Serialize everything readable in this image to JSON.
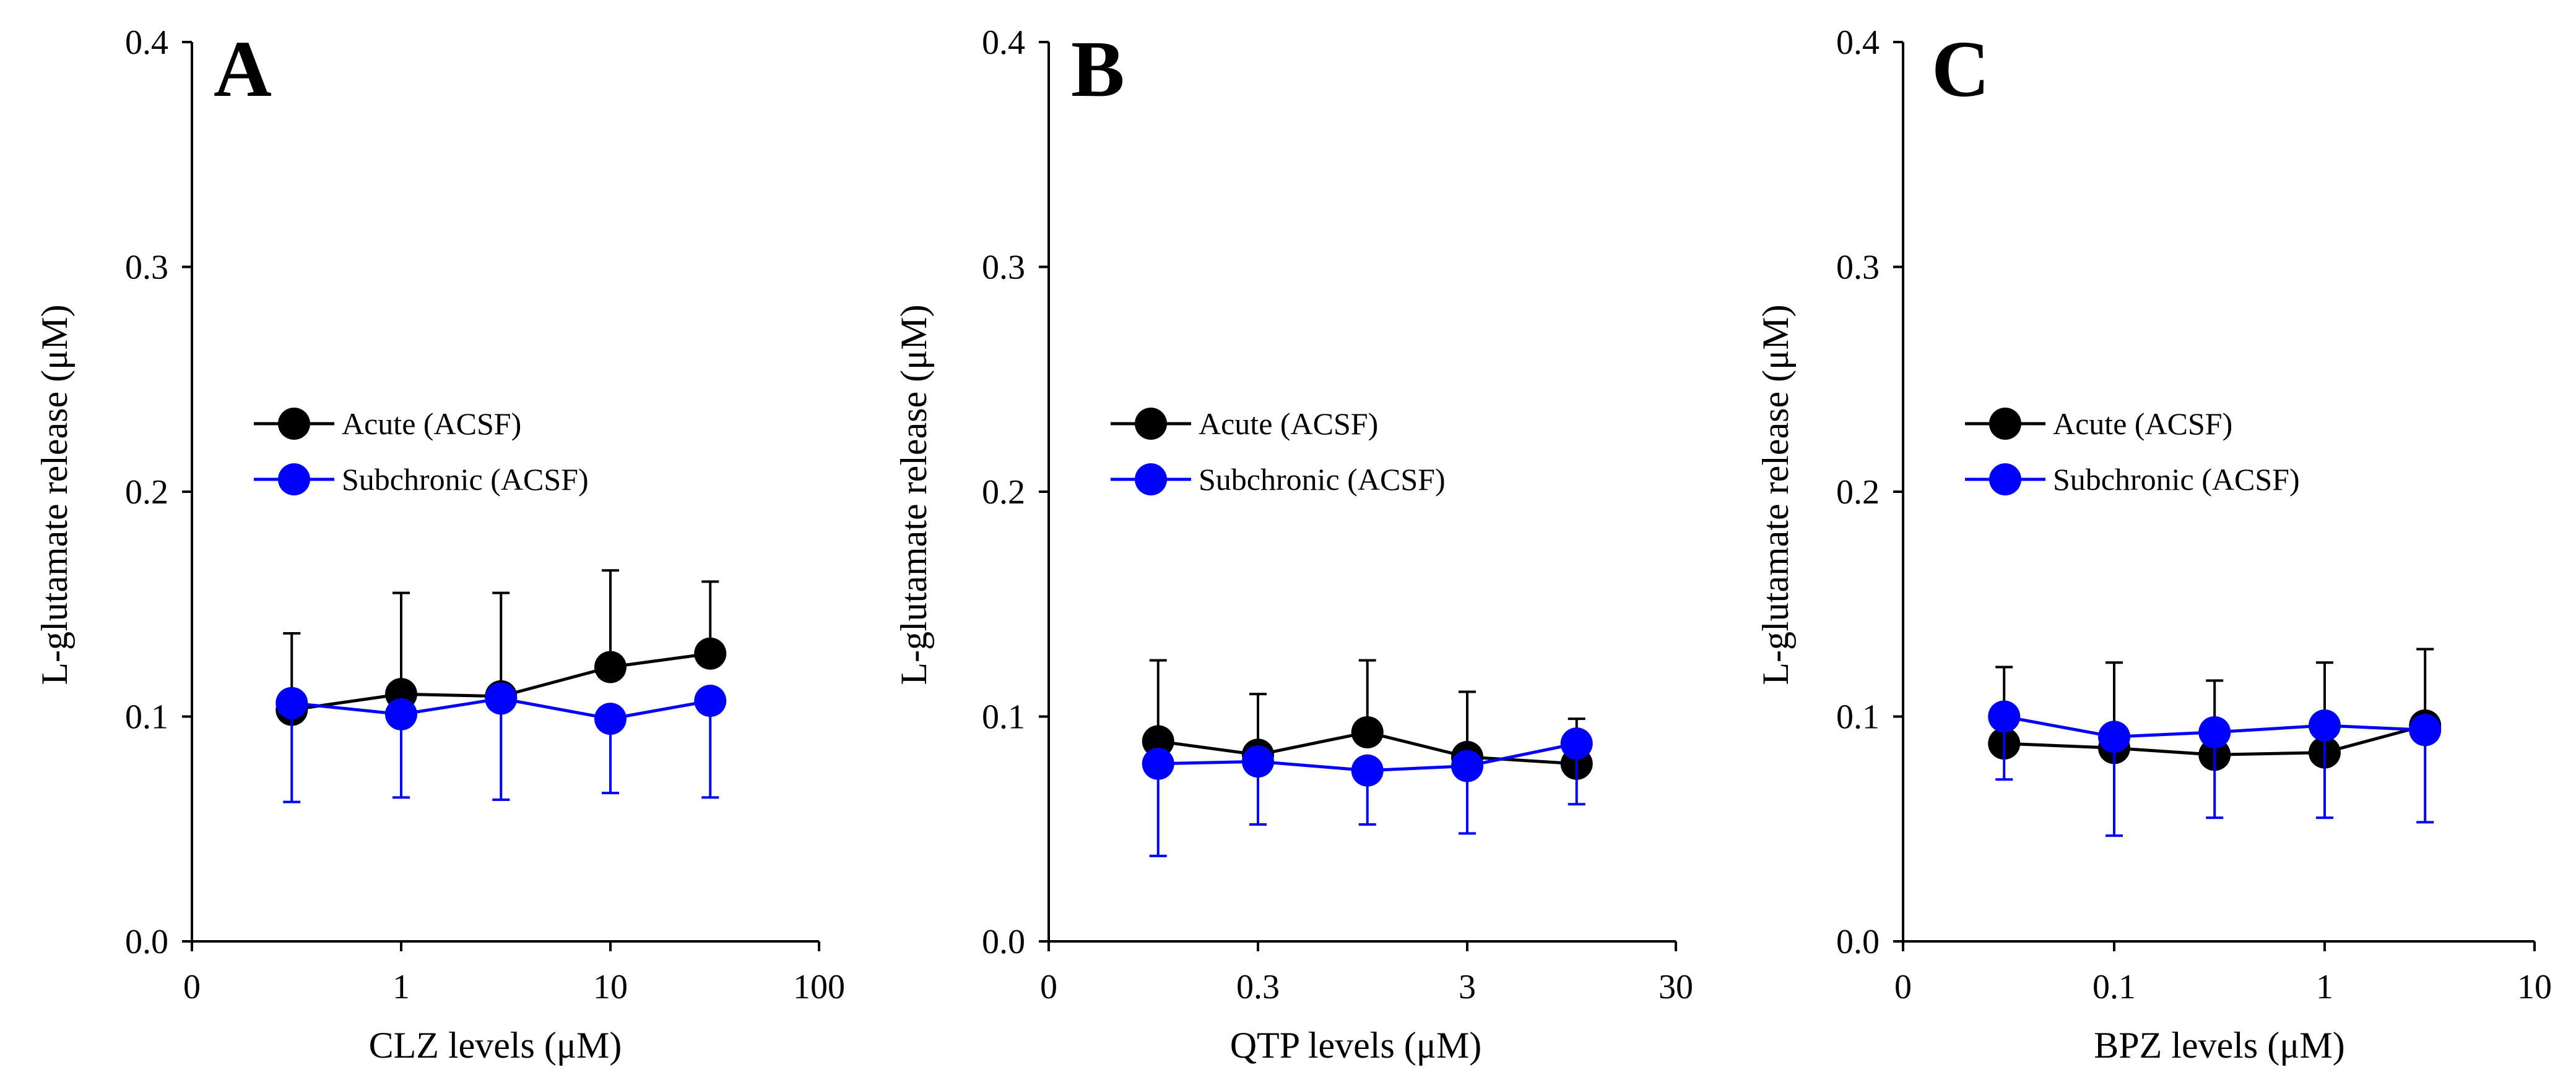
{
  "chart_data": [
    {
      "type": "line",
      "panel_label": "A",
      "xlabel": "CLZ levels (μM)",
      "ylabel": "L-glutamate release (μM)",
      "xscale": "log",
      "x_tick_labels": [
        "0",
        "1",
        "10",
        "100"
      ],
      "ylim": [
        0,
        0.4
      ],
      "y_ticks": [
        "0.0",
        "0.1",
        "0.2",
        "0.3",
        "0.4"
      ],
      "legend_position": "center-left",
      "series": [
        {
          "name": "Acute (ACSF)",
          "color": "#000000",
          "x": [
            0.3,
            1,
            3,
            10,
            30
          ],
          "y": [
            0.103,
            0.11,
            0.109,
            0.122,
            0.128
          ],
          "error": [
            0.034,
            0.045,
            0.046,
            0.043,
            0.032
          ],
          "error_direction": "up"
        },
        {
          "name": "Subchronic (ACSF)",
          "color": "#0000ff",
          "x": [
            0.3,
            1,
            3,
            10,
            30
          ],
          "y": [
            0.106,
            0.101,
            0.108,
            0.099,
            0.107
          ],
          "error": [
            0.044,
            0.037,
            0.045,
            0.033,
            0.043
          ],
          "error_direction": "down"
        }
      ]
    },
    {
      "type": "line",
      "panel_label": "B",
      "xlabel": "QTP levels (μM)",
      "ylabel": "L-glutamate release (μM)",
      "xscale": "log",
      "x_tick_labels": [
        "0",
        "0.3",
        "3",
        "30"
      ],
      "ylim": [
        0,
        0.4
      ],
      "y_ticks": [
        "0.0",
        "0.1",
        "0.2",
        "0.3",
        "0.4"
      ],
      "legend_position": "center-left",
      "series": [
        {
          "name": "Acute (ACSF)",
          "color": "#000000",
          "x": [
            0.1,
            0.3,
            1,
            3,
            10
          ],
          "y": [
            0.089,
            0.083,
            0.093,
            0.082,
            0.079
          ],
          "error": [
            0.036,
            0.027,
            0.032,
            0.029,
            0.02
          ],
          "error_direction": "up"
        },
        {
          "name": "Subchronic (ACSF)",
          "color": "#0000ff",
          "x": [
            0.1,
            0.3,
            1,
            3,
            10
          ],
          "y": [
            0.079,
            0.08,
            0.076,
            0.078,
            0.088
          ],
          "error": [
            0.041,
            0.028,
            0.024,
            0.03,
            0.027
          ],
          "error_direction": "down"
        }
      ]
    },
    {
      "type": "line",
      "panel_label": "C",
      "xlabel": "BPZ levels (μM)",
      "ylabel": "L-glutamate release (μM)",
      "xscale": "log",
      "x_tick_labels": [
        "0",
        "0.1",
        "1",
        "10"
      ],
      "ylim": [
        0,
        0.4
      ],
      "y_ticks": [
        "0.0",
        "0.1",
        "0.2",
        "0.3",
        "0.4"
      ],
      "legend_position": "center-left",
      "series": [
        {
          "name": "Acute (ACSF)",
          "color": "#000000",
          "x": [
            0.03,
            0.1,
            0.3,
            1,
            3
          ],
          "y": [
            0.088,
            0.086,
            0.083,
            0.084,
            0.096
          ],
          "error": [
            0.034,
            0.038,
            0.033,
            0.04,
            0.034
          ],
          "error_direction": "up"
        },
        {
          "name": "Subchronic (ACSF)",
          "color": "#0000ff",
          "x": [
            0.03,
            0.1,
            0.3,
            1,
            3
          ],
          "y": [
            0.1,
            0.091,
            0.093,
            0.096,
            0.094
          ],
          "error": [
            0.028,
            0.044,
            0.038,
            0.041,
            0.041
          ],
          "error_direction": "down"
        }
      ]
    }
  ]
}
